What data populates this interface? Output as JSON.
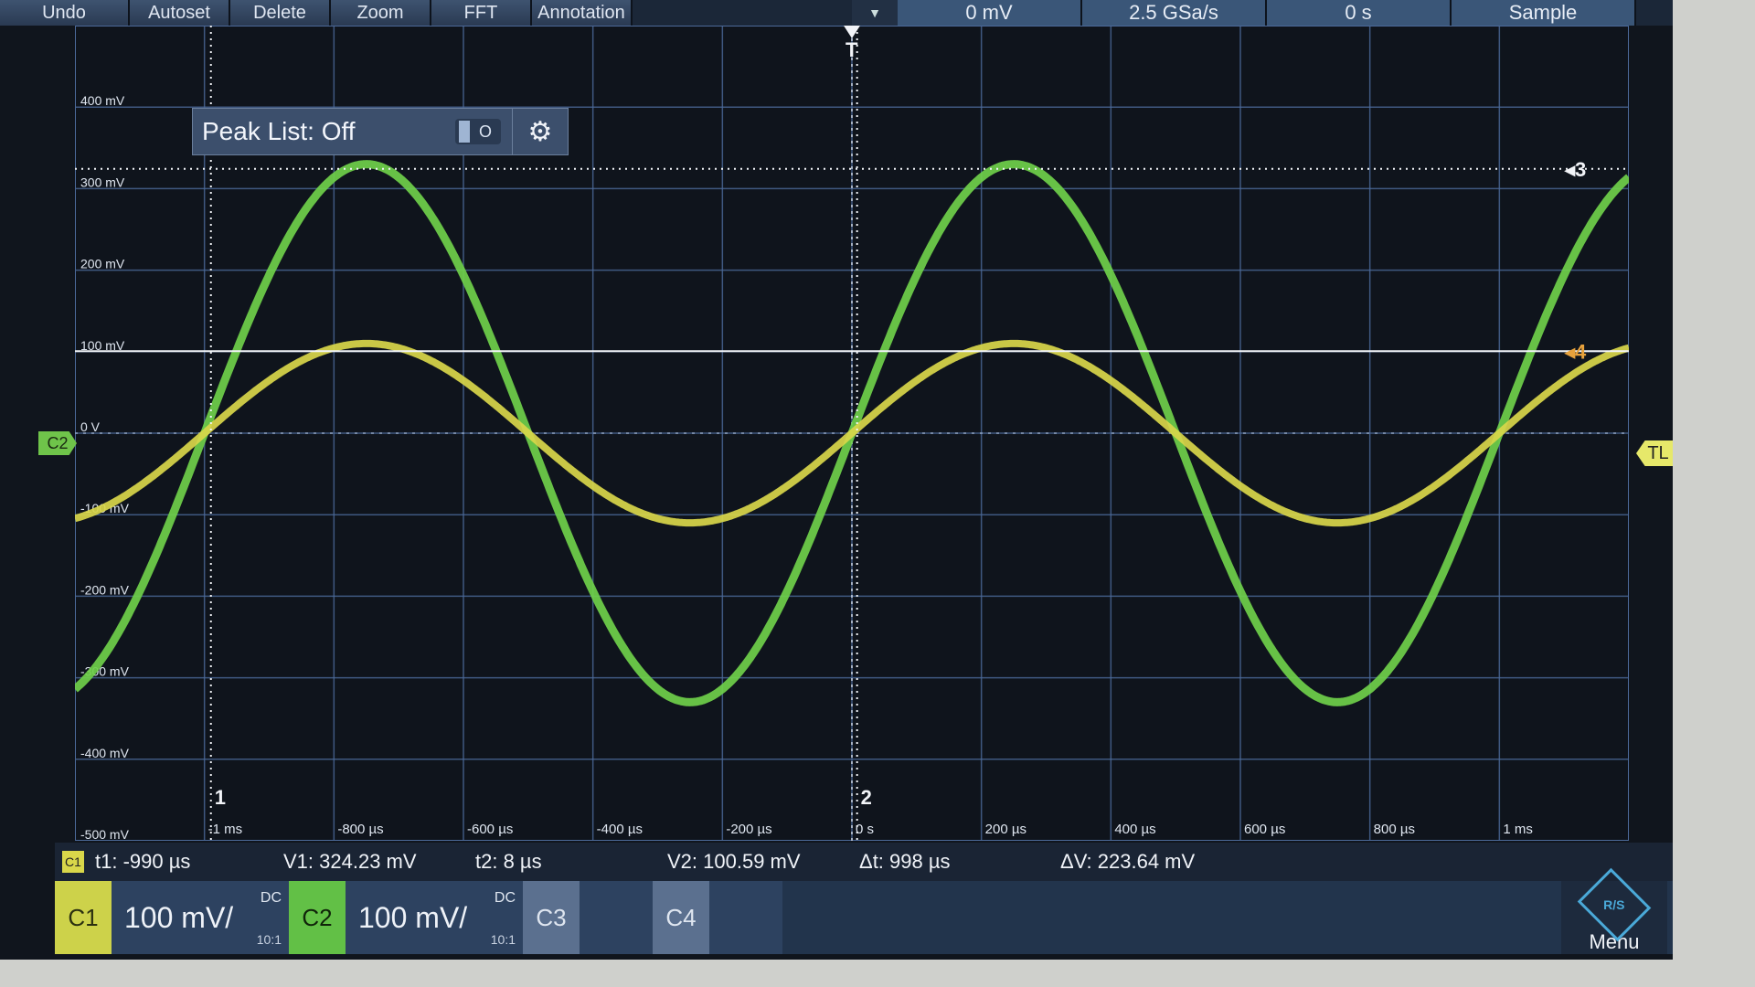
{
  "toolbar": {
    "buttons": [
      "Undo",
      "Autoset",
      "Delete",
      "Zoom",
      "FFT",
      "Annotation"
    ],
    "tabs": [
      "0 mV",
      "2.5 GSa/s",
      "0 s",
      "Sample"
    ]
  },
  "peak_list": {
    "label": "Peak List: Off",
    "toggle_state": "O"
  },
  "y_axis_labels": [
    "400 mV",
    "300 mV",
    "200 mV",
    "100 mV",
    "0 V",
    "-100 mV",
    "-200 mV",
    "-300 mV",
    "-400 mV",
    "-500 mV"
  ],
  "x_axis_labels": [
    "-1 ms",
    "-800 µs",
    "-600 µs",
    "-400 µs",
    "-200 µs",
    "0 s",
    "200 µs",
    "400 µs",
    "600 µs",
    "800 µs",
    "1 ms"
  ],
  "markers": {
    "channel": "C2",
    "trigger_level": "TL",
    "trigger_pos": "T",
    "cursor1": "1",
    "cursor2": "2",
    "cursor3": "3",
    "cursor4": "4"
  },
  "readout": {
    "chip": "C1",
    "t1": "t1: -990 µs",
    "v1": "V1: 324.23 mV",
    "t2": "t2: 8 µs",
    "v2": "V2: 100.59 mV",
    "dt": "Δt: 998 µs",
    "dv": "ΔV: 223.64 mV"
  },
  "channels": [
    {
      "name": "C1",
      "scale": "100 mV/",
      "coupling": "DC",
      "probe": "10:1"
    },
    {
      "name": "C2",
      "scale": "100 mV/",
      "coupling": "DC",
      "probe": "10:1"
    },
    {
      "name": "C3"
    },
    {
      "name": "C4"
    }
  ],
  "menu": {
    "label": "Menu",
    "logo": "R/S"
  },
  "colors": {
    "c1": "#d9d74a",
    "c2": "#6fd04a",
    "grid": "#4c6a9a",
    "background": "#0f141c"
  },
  "chart_data": {
    "type": "line",
    "xlabel": "",
    "ylabel": "",
    "xlim": [
      -1200,
      1200
    ],
    "ylim": [
      -500,
      500
    ],
    "grid": true,
    "series": [
      {
        "name": "C2",
        "color": "#6fd04a",
        "amplitude_mv": 330,
        "period_us": 1000,
        "phase_us": 0
      },
      {
        "name": "C1",
        "color": "#d9d74a",
        "amplitude_mv": 110,
        "period_us": 1000,
        "phase_us": 0
      }
    ],
    "cursors": {
      "t1_us": -990,
      "t2_us": 8,
      "v1_mv": 324.23,
      "v2_mv": 100.59
    }
  }
}
